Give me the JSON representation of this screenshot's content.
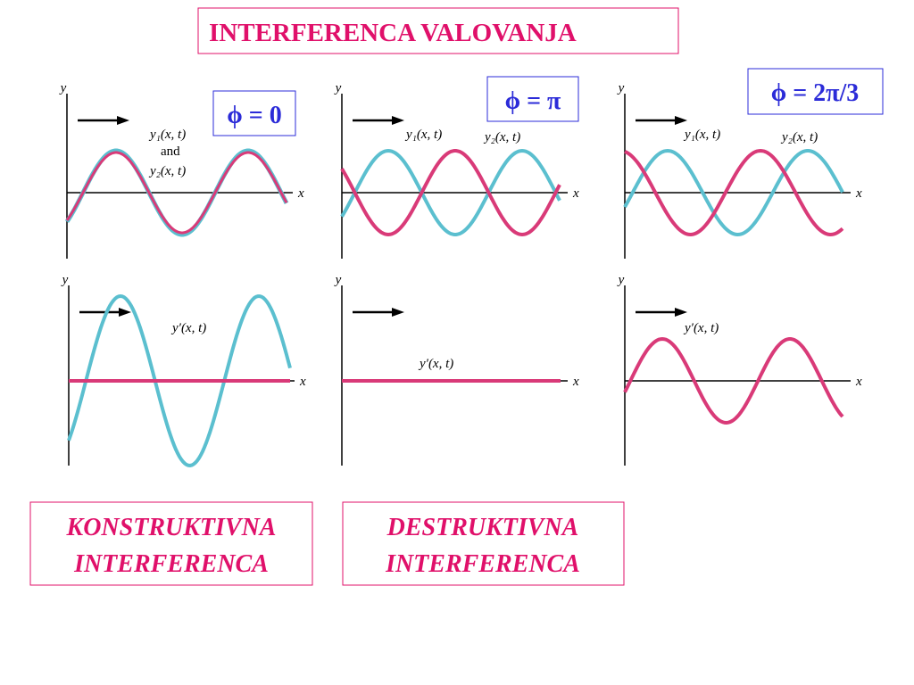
{
  "title": "INTERFERENCA VALOVANJA",
  "axes": {
    "y": "y",
    "x": "x"
  },
  "panels": [
    {
      "phase": "ϕ = 0",
      "top_labels": [
        "y₁(x, t)",
        "and",
        "y₂(x, t)"
      ],
      "bottom_label": "y′(x, t)"
    },
    {
      "phase": "ϕ = π",
      "top_labels": [
        "y₁(x, t)",
        "y₂(x, t)"
      ],
      "bottom_label": "y′(x, t)"
    },
    {
      "phase": "ϕ = 2π/3",
      "top_labels": [
        "y₁(x, t)",
        "y₂(x, t)"
      ],
      "bottom_label": "y′(x, t)"
    }
  ],
  "boxes": [
    {
      "lines": [
        "KONSTRUKTIVNA",
        "INTERFERENCA"
      ]
    },
    {
      "lines": [
        "DESTRUKTIVNA",
        "INTERFERENCA"
      ]
    }
  ]
}
